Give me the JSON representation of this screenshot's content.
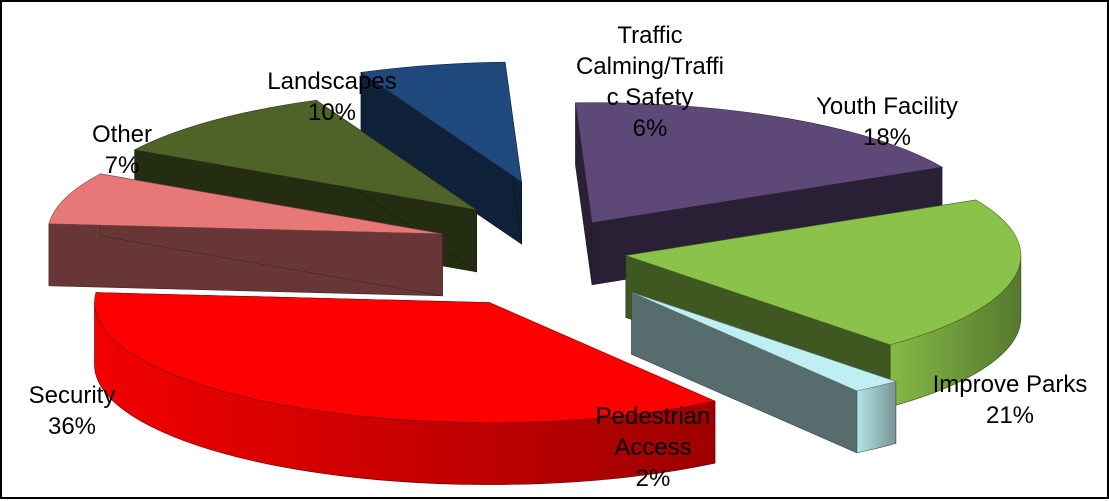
{
  "chart_data": {
    "type": "pie",
    "title": "",
    "slices": [
      {
        "label": "Traffic Calming/Traffic Safety",
        "label_lines": [
          "Traffic",
          "Calming/Traffi",
          "c Safety",
          "6%"
        ],
        "value": 6,
        "color": "#1F497D"
      },
      {
        "label": "Youth Facility",
        "label_lines": [
          "Youth Facility",
          "18%"
        ],
        "value": 18,
        "color": "#5E4878"
      },
      {
        "label": "Improve Parks",
        "label_lines": [
          "Improve Parks",
          "21%"
        ],
        "value": 21,
        "color": "#8BC34A"
      },
      {
        "label": "Pedestrian Access",
        "label_lines": [
          "Pedestrian",
          "Access",
          "2%"
        ],
        "value": 2,
        "color": "#BFEFF2"
      },
      {
        "label": "Security",
        "label_lines": [
          "Security",
          "36%"
        ],
        "value": 36,
        "color": "#FF0000"
      },
      {
        "label": "Other",
        "label_lines": [
          "Other",
          "7%"
        ],
        "value": 7,
        "color": "#E87878"
      },
      {
        "label": "Landscapes",
        "label_lines": [
          "Landscapes",
          "10%"
        ],
        "value": 10,
        "color": "#4F6228"
      }
    ],
    "legend": "none",
    "style": "3d-exploded"
  }
}
